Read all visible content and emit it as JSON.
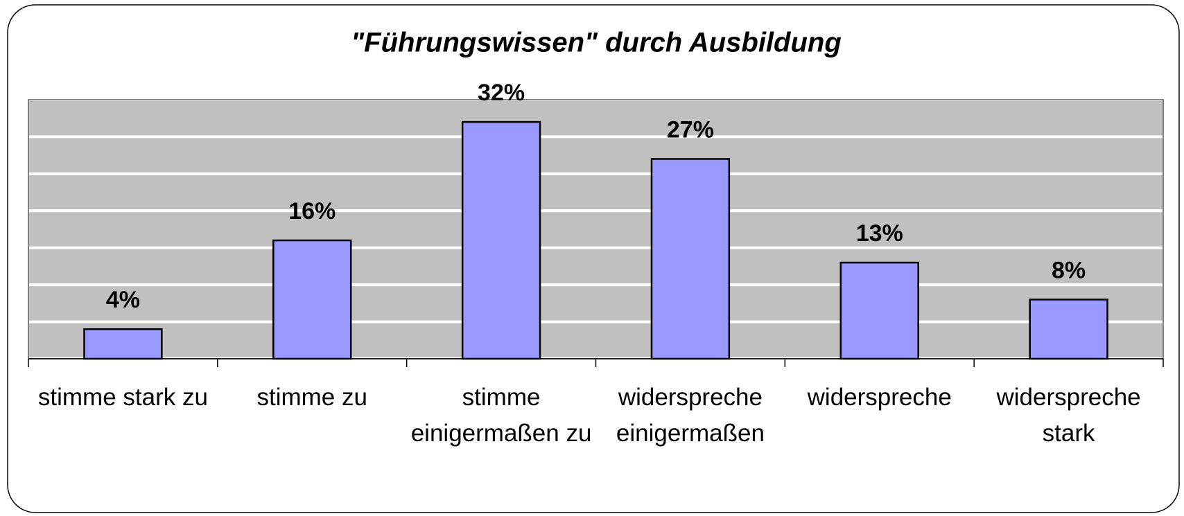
{
  "chart_data": {
    "type": "bar",
    "title": "\"Führungswissen\" durch Ausbildung",
    "categories": [
      "stimme stark zu",
      "stimme zu",
      "stimme einigermaßen zu",
      "widerspreche einigermaßen",
      "widerspreche",
      "widerspreche stark"
    ],
    "values": [
      4,
      16,
      32,
      27,
      13,
      8
    ],
    "value_labels": [
      "4%",
      "16%",
      "32%",
      "27%",
      "13%",
      "8%"
    ],
    "color": "#9999ff",
    "ylim": [
      0,
      35
    ],
    "yticks": [
      0,
      5,
      10,
      15,
      20,
      25,
      30,
      35
    ],
    "grid": true
  }
}
